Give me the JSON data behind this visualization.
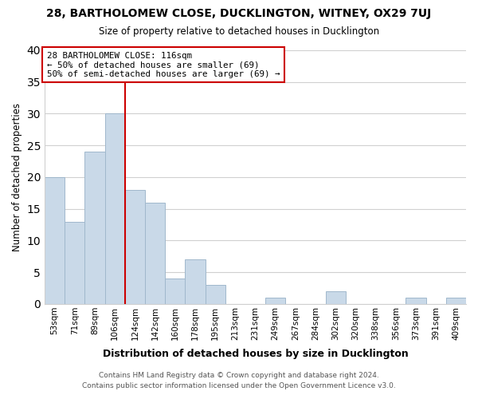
{
  "title": "28, BARTHOLOMEW CLOSE, DUCKLINGTON, WITNEY, OX29 7UJ",
  "subtitle": "Size of property relative to detached houses in Ducklington",
  "xlabel": "Distribution of detached houses by size in Ducklington",
  "ylabel": "Number of detached properties",
  "bins": [
    "53sqm",
    "71sqm",
    "89sqm",
    "106sqm",
    "124sqm",
    "142sqm",
    "160sqm",
    "178sqm",
    "195sqm",
    "213sqm",
    "231sqm",
    "249sqm",
    "267sqm",
    "284sqm",
    "302sqm",
    "320sqm",
    "338sqm",
    "356sqm",
    "373sqm",
    "391sqm",
    "409sqm"
  ],
  "values": [
    20,
    13,
    24,
    30,
    18,
    16,
    4,
    7,
    3,
    0,
    0,
    1,
    0,
    0,
    2,
    0,
    0,
    0,
    1,
    0,
    1
  ],
  "bar_color": "#c9d9e8",
  "bar_edge_color": "#a0b8cc",
  "red_line_bin_index": 4,
  "ylim": [
    0,
    40
  ],
  "yticks": [
    0,
    5,
    10,
    15,
    20,
    25,
    30,
    35,
    40
  ],
  "annotation_title": "28 BARTHOLOMEW CLOSE: 116sqm",
  "annotation_line1": "← 50% of detached houses are smaller (69)",
  "annotation_line2": "50% of semi-detached houses are larger (69) →",
  "annotation_box_color": "#ffffff",
  "annotation_box_edge": "#cc0000",
  "footnote1": "Contains HM Land Registry data © Crown copyright and database right 2024.",
  "footnote2": "Contains public sector information licensed under the Open Government Licence v3.0.",
  "background_color": "#ffffff",
  "grid_color": "#d0d0d0"
}
